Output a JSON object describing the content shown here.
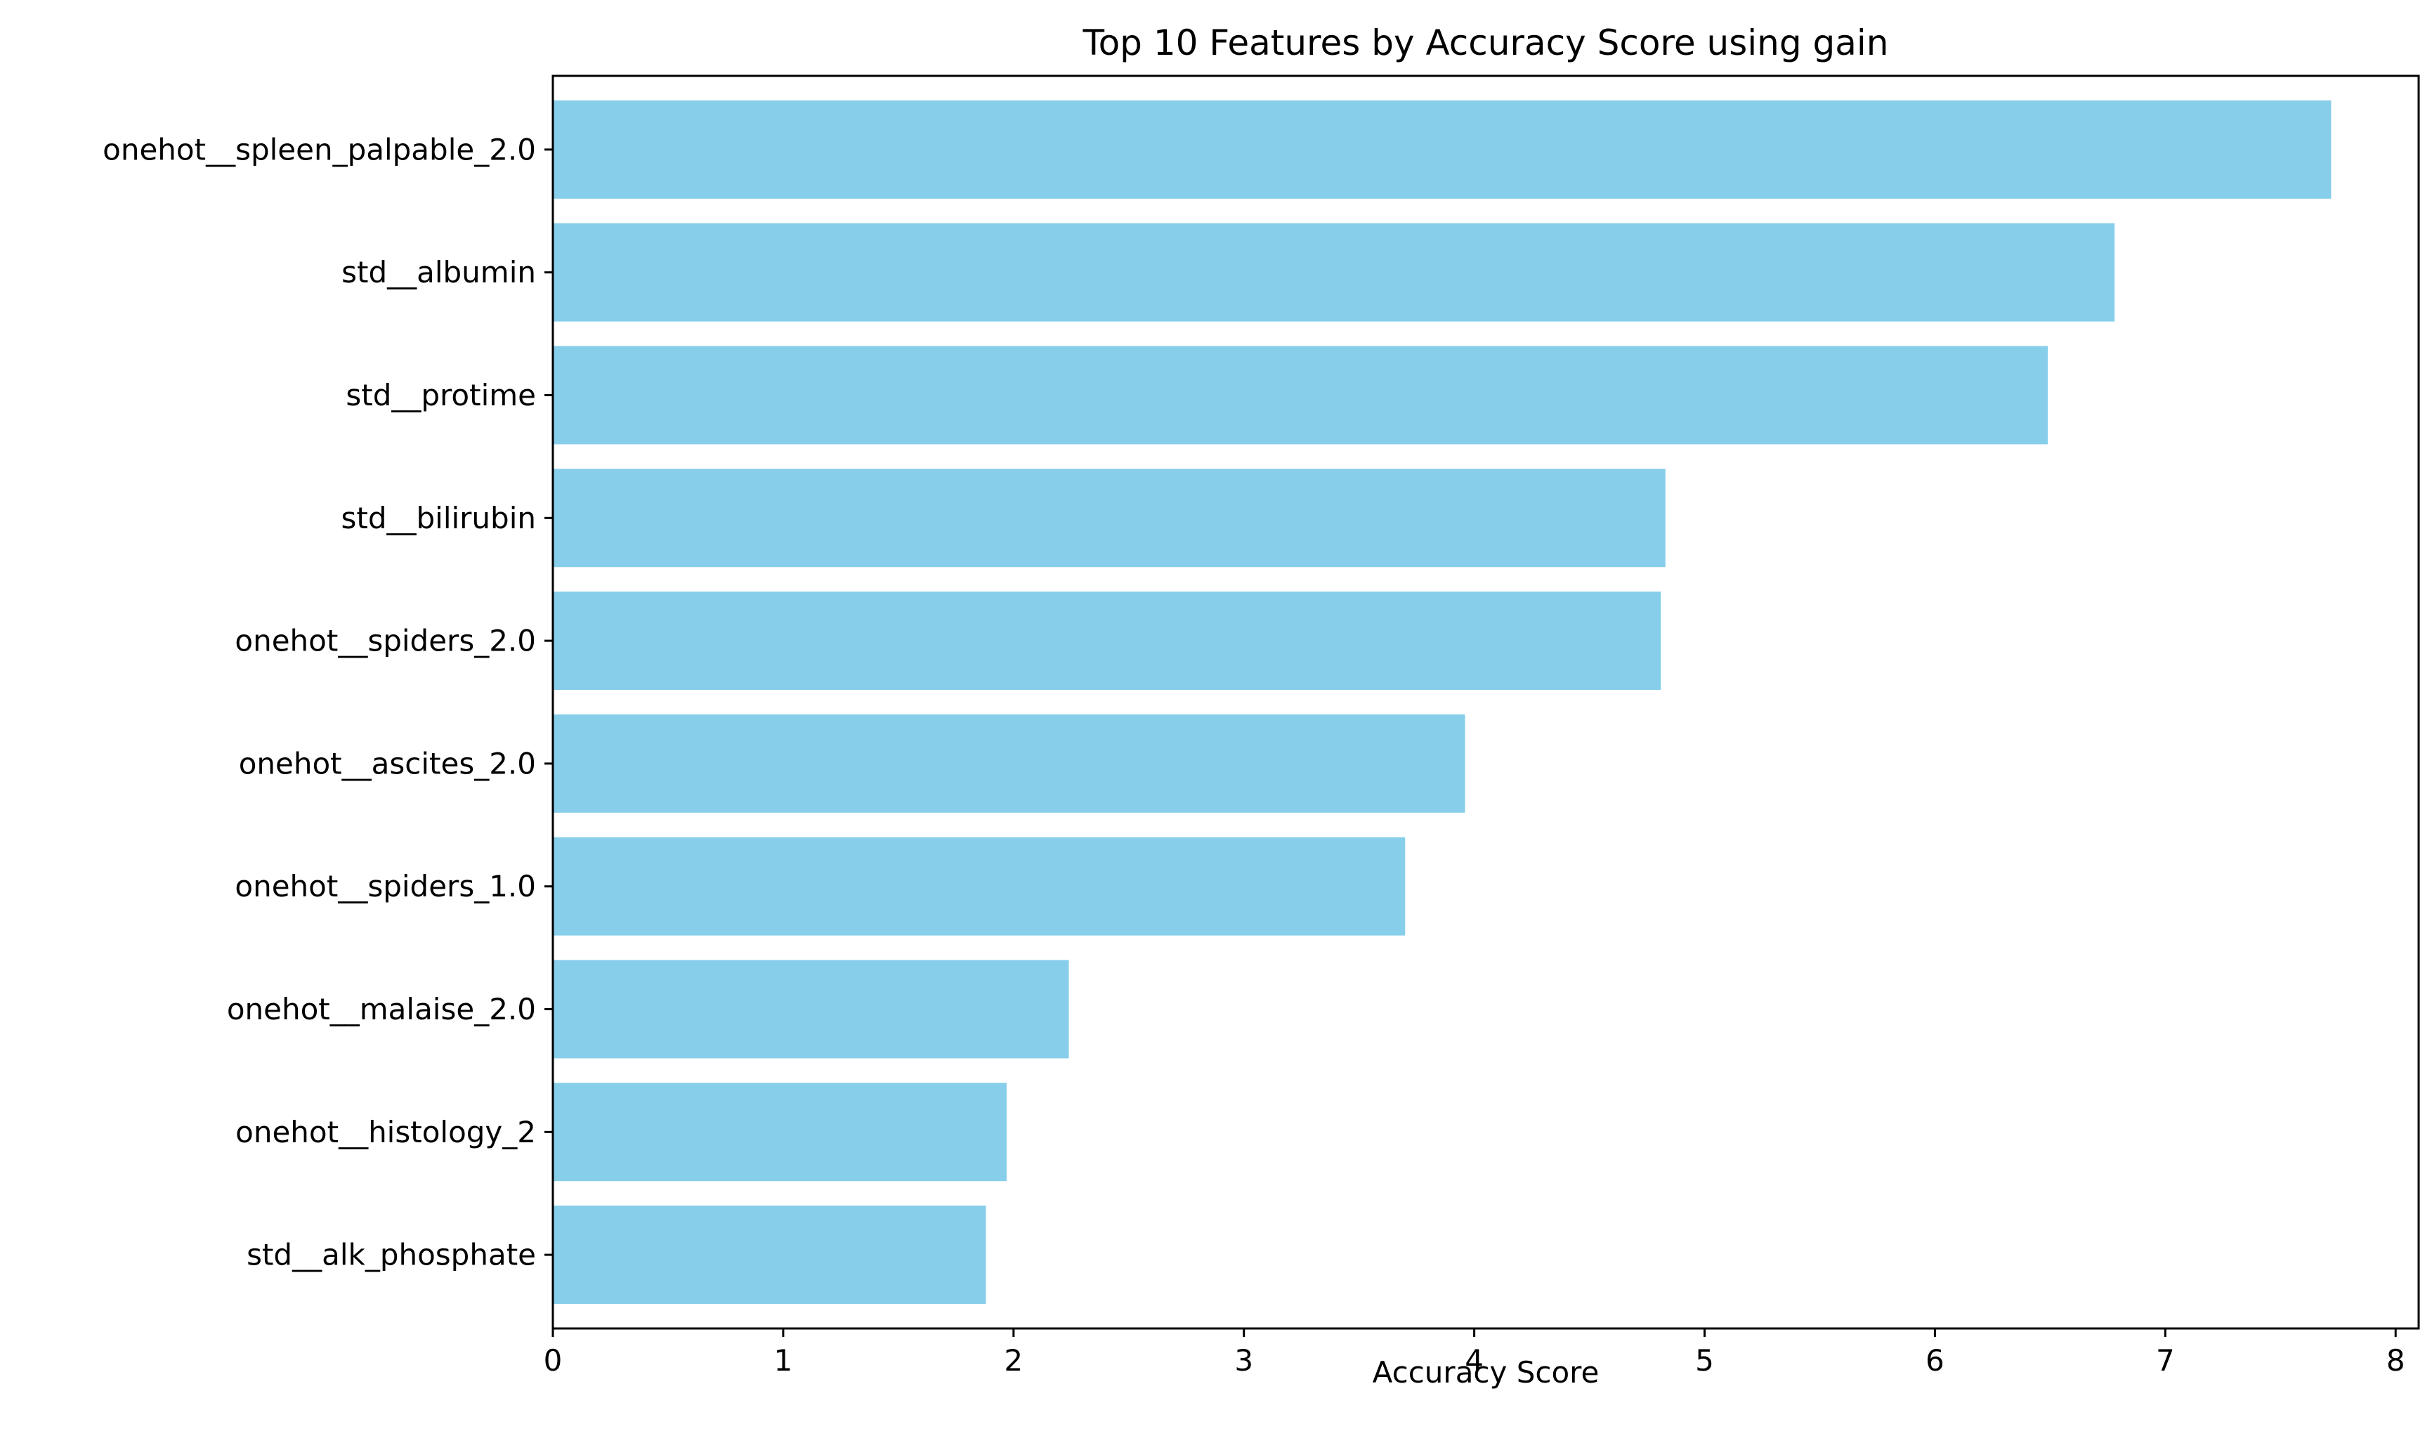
{
  "chart_data": {
    "type": "bar",
    "orientation": "horizontal",
    "title": "Top 10 Features by Accuracy Score using gain",
    "xlabel": "Accuracy Score",
    "ylabel": "",
    "xlim": [
      0,
      8.1
    ],
    "xticks": [
      0,
      1,
      2,
      3,
      4,
      5,
      6,
      7,
      8
    ],
    "grid": false,
    "bar_color": "#87CEEB",
    "categories": [
      "onehot__spleen_palpable_2.0",
      "std__albumin",
      "std__protime",
      "std__bilirubin",
      "onehot__spiders_2.0",
      "onehot__ascites_2.0",
      "onehot__spiders_1.0",
      "onehot__malaise_2.0",
      "onehot__histology_2",
      "std__alk_phosphate"
    ],
    "values": [
      7.72,
      6.78,
      6.49,
      4.83,
      4.81,
      3.96,
      3.7,
      2.24,
      1.97,
      1.88
    ]
  }
}
